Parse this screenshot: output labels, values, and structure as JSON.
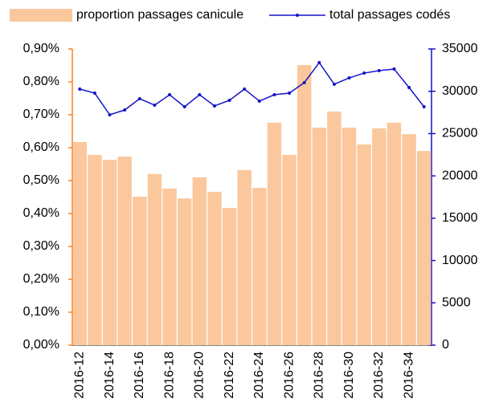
{
  "chart_data": {
    "type": "bar",
    "categories": [
      "2016-12",
      null,
      "2016-14",
      null,
      "2016-16",
      null,
      "2016-18",
      null,
      "2016-20",
      null,
      "2016-22",
      null,
      "2016-24",
      null,
      "2016-26",
      null,
      "2016-28",
      null,
      "2016-30",
      null,
      "2016-32",
      null,
      "2016-34",
      null
    ],
    "series": [
      {
        "name": "proportion passages canicule",
        "type": "bar",
        "color": "#fac89c",
        "values": [
          0.617,
          0.578,
          0.563,
          0.573,
          0.451,
          0.52,
          0.476,
          0.446,
          0.51,
          0.466,
          0.417,
          0.532,
          0.478,
          0.676,
          0.578,
          0.851,
          0.661,
          0.71,
          0.661,
          0.61,
          0.659,
          0.676,
          0.641,
          0.59
        ]
      },
      {
        "name": "total passages codés",
        "type": "line",
        "axis": "y2",
        "color": "#1414c8",
        "values": [
          30260,
          29780,
          27220,
          27790,
          29120,
          28360,
          29590,
          28170,
          29590,
          28270,
          28930,
          30260,
          28840,
          29590,
          29780,
          31020,
          33390,
          30830,
          31580,
          32150,
          32440,
          32630,
          30450,
          28170
        ]
      }
    ],
    "ylim": [
      0,
      0.9
    ],
    "yticks": [
      {
        "value": 0,
        "label": "0,00%"
      },
      {
        "value": 0.1,
        "label": "0,10%"
      },
      {
        "value": 0.2,
        "label": "0,20%"
      },
      {
        "value": 0.3,
        "label": "0,30%"
      },
      {
        "value": 0.4,
        "label": "0,40%"
      },
      {
        "value": 0.5,
        "label": "0,50%"
      },
      {
        "value": 0.6,
        "label": "0,60%"
      },
      {
        "value": 0.7,
        "label": "0,70%"
      },
      {
        "value": 0.8,
        "label": "0,80%"
      },
      {
        "value": 0.9,
        "label": "0,90%"
      }
    ],
    "y2lim": [
      0,
      35000
    ],
    "y2ticks": [
      0,
      5000,
      10000,
      15000,
      20000,
      25000,
      30000,
      35000
    ],
    "legend": "top"
  }
}
